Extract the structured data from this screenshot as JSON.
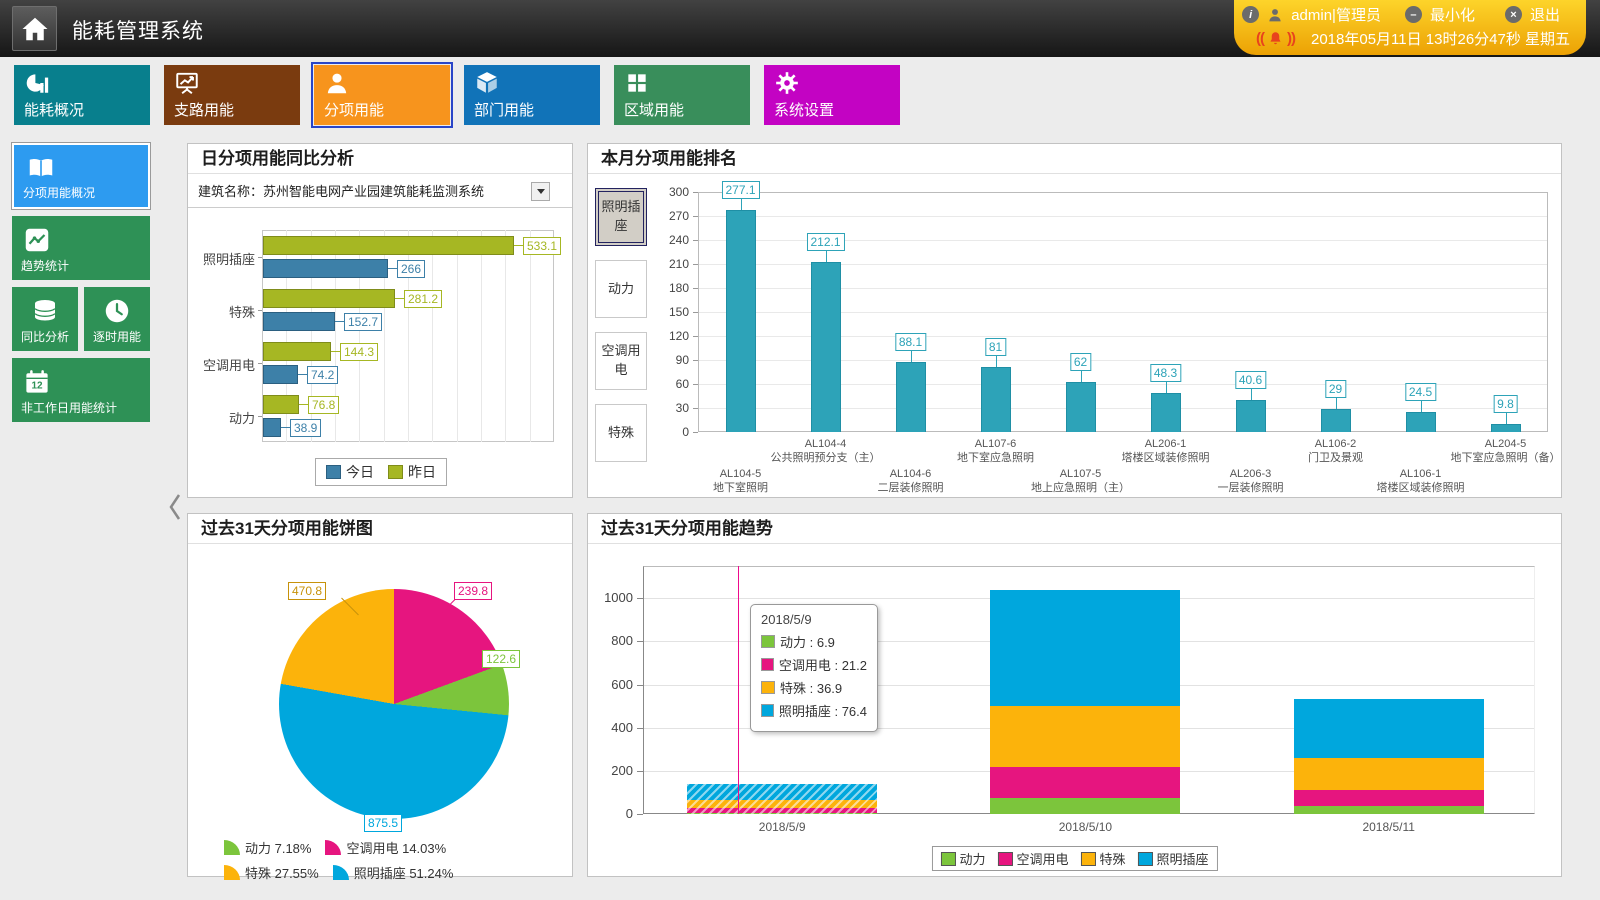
{
  "header": {
    "title": "能耗管理系统",
    "user": "admin|管理员",
    "minimize_label": "最小化",
    "exit_label": "退出",
    "datetime": "2018年05月11日 13时26分47秒 星期五"
  },
  "nav": {
    "selected": "分项用能",
    "items": [
      {
        "label": "能耗概况",
        "color": "#087f8d"
      },
      {
        "label": "支路用能",
        "color": "#7a3b0f"
      },
      {
        "label": "分项用能",
        "color": "#f7941d"
      },
      {
        "label": "部门用能",
        "color": "#1173b8"
      },
      {
        "label": "区域用能",
        "color": "#398e5b"
      },
      {
        "label": "系统设置",
        "color": "#c303c3"
      }
    ]
  },
  "sidebar": {
    "selected": "分项用能概况",
    "items": [
      {
        "label": "分项用能概况",
        "color": "#2d9bf0"
      },
      {
        "label": "趋势统计",
        "color": "#2e9156"
      },
      {
        "label": "同比分析",
        "color": "#2e9156"
      },
      {
        "label": "逐时用能",
        "color": "#2e9156"
      },
      {
        "label": "非工作日用能统计",
        "color": "#2e9156"
      }
    ]
  },
  "panels": {
    "compare": {
      "title": "日分项用能同比分析",
      "building_label": "建筑名称：苏州智能电网产业园建筑能耗监测系统"
    },
    "rank": {
      "title": "本月分项用能排名",
      "buttons": [
        "照明插座",
        "动力",
        "空调用电",
        "特殊"
      ],
      "selected_button": "照明插座"
    },
    "pie": {
      "title": "过去31天分项用能饼图"
    },
    "trend": {
      "title": "过去31天分项用能趋势"
    }
  },
  "chart_data": [
    {
      "id": "daily_compare",
      "type": "bar",
      "orientation": "horizontal",
      "categories": [
        "照明插座",
        "特殊",
        "空调用电",
        "动力"
      ],
      "series": [
        {
          "name": "今日",
          "color": "#3d80a8",
          "dark": "#2b5f80",
          "values": [
            266,
            152.7,
            74.2,
            38.9
          ]
        },
        {
          "name": "昨日",
          "color": "#a6b723",
          "dark": "#7f8c1a",
          "values": [
            533.1,
            281.2,
            144.3,
            76.8
          ]
        }
      ],
      "xlim": [
        0,
        620
      ],
      "legend_position": "bottom",
      "grid": true
    },
    {
      "id": "monthly_rank",
      "type": "bar",
      "categories": [
        [
          "AL104-5",
          "地下室照明"
        ],
        [
          "AL104-4",
          "公共照明预分支（主）"
        ],
        [
          "AL104-6",
          "二层装修照明"
        ],
        [
          "AL107-6",
          "地下室应急照明"
        ],
        [
          "AL107-5",
          "地上应急照明（主）"
        ],
        [
          "AL206-1",
          "塔楼区域装修照明"
        ],
        [
          "AL206-3",
          "一层装修照明"
        ],
        [
          "AL106-2",
          "门卫及景观"
        ],
        [
          "AL106-1",
          "塔楼区域装修照明"
        ],
        [
          "AL204-5",
          "地下室应急照明（备）"
        ]
      ],
      "values": [
        277.1,
        212.1,
        88.1,
        81,
        62,
        48.3,
        40.6,
        29,
        24.5,
        9.8
      ],
      "bar_color": "#2da3b8",
      "ylim": [
        0,
        300
      ],
      "ytick_step": 30,
      "grid": true
    },
    {
      "id": "pie_31d",
      "type": "pie",
      "slices": [
        {
          "name": "动力",
          "value": 122.6,
          "pct": "7.18%",
          "color": "#7cc53c"
        },
        {
          "name": "空调用电",
          "value": 239.8,
          "pct": "14.03%",
          "color": "#e6157f"
        },
        {
          "name": "特殊",
          "value": 470.8,
          "pct": "27.55%",
          "color": "#fcb30b"
        },
        {
          "name": "照明插座",
          "value": 875.5,
          "pct": "51.24%",
          "color": "#00a7dd"
        }
      ],
      "legend_position": "bottom"
    },
    {
      "id": "trend_31d",
      "type": "stacked-bar",
      "categories": [
        "2018/5/9",
        "2018/5/10",
        "2018/5/11"
      ],
      "series": [
        {
          "name": "动力",
          "color": "#7cc53c",
          "values": [
            6.9,
            72,
            38
          ]
        },
        {
          "name": "空调用电",
          "color": "#e6157f",
          "values": [
            21.2,
            148,
            75
          ]
        },
        {
          "name": "特殊",
          "color": "#fcb30b",
          "values": [
            36.9,
            280,
            148
          ]
        },
        {
          "name": "照明插座",
          "color": "#00a7dd",
          "values": [
            76.4,
            540,
            272
          ]
        }
      ],
      "ylim": [
        0,
        1150
      ],
      "ytick_step": 200,
      "grid": true,
      "highlight_index": 0,
      "crosshair_color": "#ee0a8c",
      "tooltip": {
        "title": "2018/5/9",
        "rows": [
          {
            "name": "动力",
            "value": "6.9",
            "color": "#7cc53c"
          },
          {
            "name": "空调用电",
            "value": "21.2",
            "color": "#e6157f"
          },
          {
            "name": "特殊",
            "value": "36.9",
            "color": "#fcb30b"
          },
          {
            "name": "照明插座",
            "value": "76.4",
            "color": "#00a7dd"
          }
        ]
      },
      "legend_position": "bottom"
    }
  ]
}
